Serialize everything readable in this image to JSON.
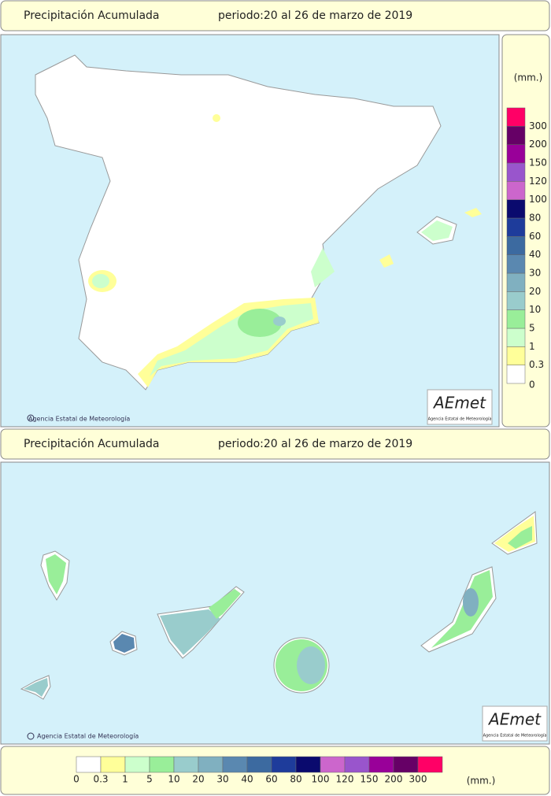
{
  "panels": [
    {
      "title": "Precipitación Acumulada",
      "period": "periodo:20 al 26 de marzo de 2019",
      "credit": "Agencia Estatal de Meteorología",
      "logo": "AEmet",
      "logo_caption": "Agencia Estatal de Meteorología"
    },
    {
      "title": "Precipitación Acumulada",
      "period": "periodo:20 al 26 de marzo de 2019",
      "credit": "Agencia Estatal de Meteorología",
      "logo": "AEmet",
      "logo_caption": "Agencia Estatal de Meteorología"
    }
  ],
  "legend": {
    "unit": "(mm.)",
    "bins": [
      {
        "label": "0",
        "color": "#ffffff"
      },
      {
        "label": "0.3",
        "color": "#ffff99"
      },
      {
        "label": "1",
        "color": "#ccffcc"
      },
      {
        "label": "5",
        "color": "#99ee99"
      },
      {
        "label": "10",
        "color": "#99cccc"
      },
      {
        "label": "20",
        "color": "#80b0c0"
      },
      {
        "label": "30",
        "color": "#5a88b0"
      },
      {
        "label": "40",
        "color": "#3c6aa0"
      },
      {
        "label": "60",
        "color": "#1e3c9b"
      },
      {
        "label": "80",
        "color": "#0a0a6e"
      },
      {
        "label": "100",
        "color": "#cc66cc"
      },
      {
        "label": "120",
        "color": "#9955cc"
      },
      {
        "label": "150",
        "color": "#990099"
      },
      {
        "label": "200",
        "color": "#660066"
      },
      {
        "label": "300",
        "color": "#ff0066"
      }
    ]
  }
}
